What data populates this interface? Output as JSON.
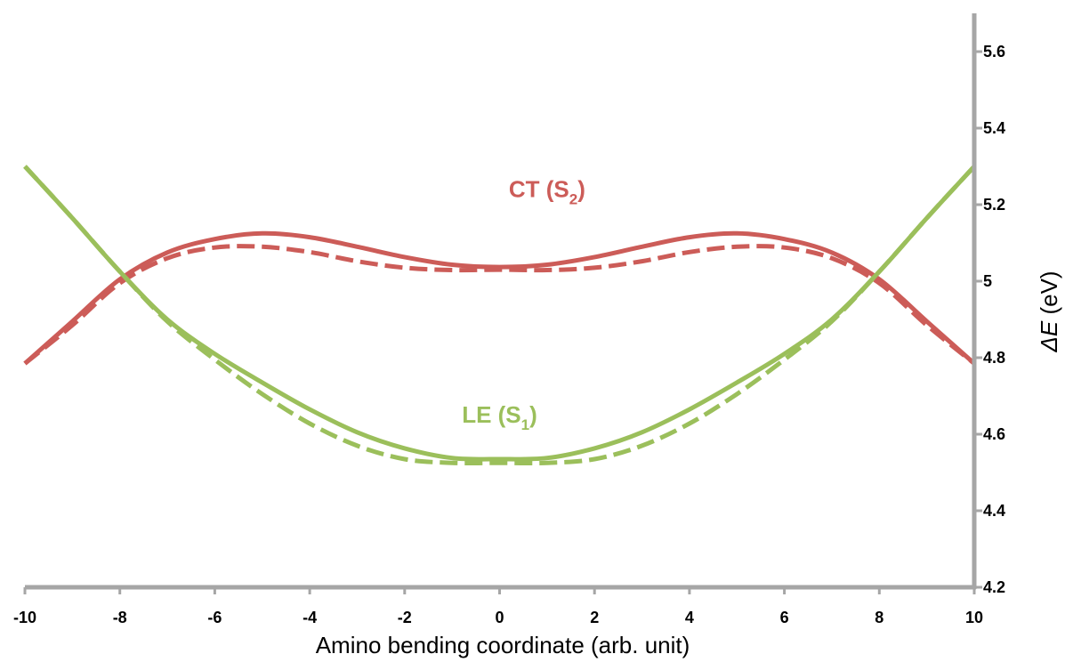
{
  "chart_data": {
    "type": "line",
    "xlabel": "Amino bending coordinate (arb. unit)",
    "ylabel_symbol": "ΔE",
    "ylabel_unit": "(eV)",
    "xlim": [
      -10,
      10
    ],
    "ylim": [
      4.2,
      5.7
    ],
    "x_ticks": [
      -10,
      -8,
      -6,
      -4,
      -2,
      0,
      2,
      4,
      6,
      8,
      10
    ],
    "y_ticks": [
      4.2,
      4.4,
      4.6,
      4.8,
      5,
      5.2,
      5.4,
      5.6
    ],
    "y_tick_labels": [
      "4.2",
      "4.4",
      "4.6",
      "4.8",
      "5",
      "5.2",
      "5.4",
      "5.6"
    ],
    "y_axis_side": "right",
    "grid": false,
    "colors": {
      "ct": "#cc5c58",
      "le": "#9bbf5b",
      "axis": "#a6a6a6"
    },
    "x": [
      -10,
      -9,
      -8,
      -7,
      -6,
      -5,
      -4,
      -3,
      -2,
      -1,
      0,
      1,
      2,
      3,
      4,
      5,
      6,
      7,
      8,
      9,
      10
    ],
    "series": [
      {
        "label_main": "CT (S",
        "label_sub": "2",
        "label_close": ")",
        "label_x": 1.0,
        "label_y": 5.22,
        "group": "ct",
        "dashed": false,
        "values": [
          4.785,
          4.895,
          5.005,
          5.075,
          5.11,
          5.125,
          5.115,
          5.09,
          5.063,
          5.043,
          5.037,
          5.043,
          5.063,
          5.09,
          5.115,
          5.125,
          5.11,
          5.075,
          5.005,
          4.895,
          4.785
        ]
      },
      {
        "group": "ct",
        "dashed": true,
        "values": [
          4.785,
          4.885,
          4.995,
          5.06,
          5.088,
          5.09,
          5.076,
          5.052,
          5.035,
          5.029,
          5.03,
          5.029,
          5.035,
          5.052,
          5.076,
          5.09,
          5.088,
          5.06,
          4.995,
          4.885,
          4.785
        ]
      },
      {
        "label_main": "LE (S",
        "label_sub": "1",
        "label_close": ")",
        "label_x": 0.0,
        "label_y": 4.63,
        "group": "le",
        "dashed": false,
        "values": [
          5.3,
          5.165,
          5.025,
          4.9,
          4.81,
          4.735,
          4.665,
          4.605,
          4.563,
          4.538,
          4.535,
          4.538,
          4.563,
          4.605,
          4.665,
          4.735,
          4.81,
          4.9,
          5.025,
          5.165,
          5.3
        ]
      },
      {
        "group": "le",
        "dashed": true,
        "values": [
          5.3,
          5.165,
          5.025,
          4.895,
          4.795,
          4.705,
          4.628,
          4.57,
          4.535,
          4.525,
          4.525,
          4.525,
          4.535,
          4.57,
          4.628,
          4.705,
          4.795,
          4.895,
          5.025,
          5.165,
          5.3
        ]
      }
    ]
  }
}
